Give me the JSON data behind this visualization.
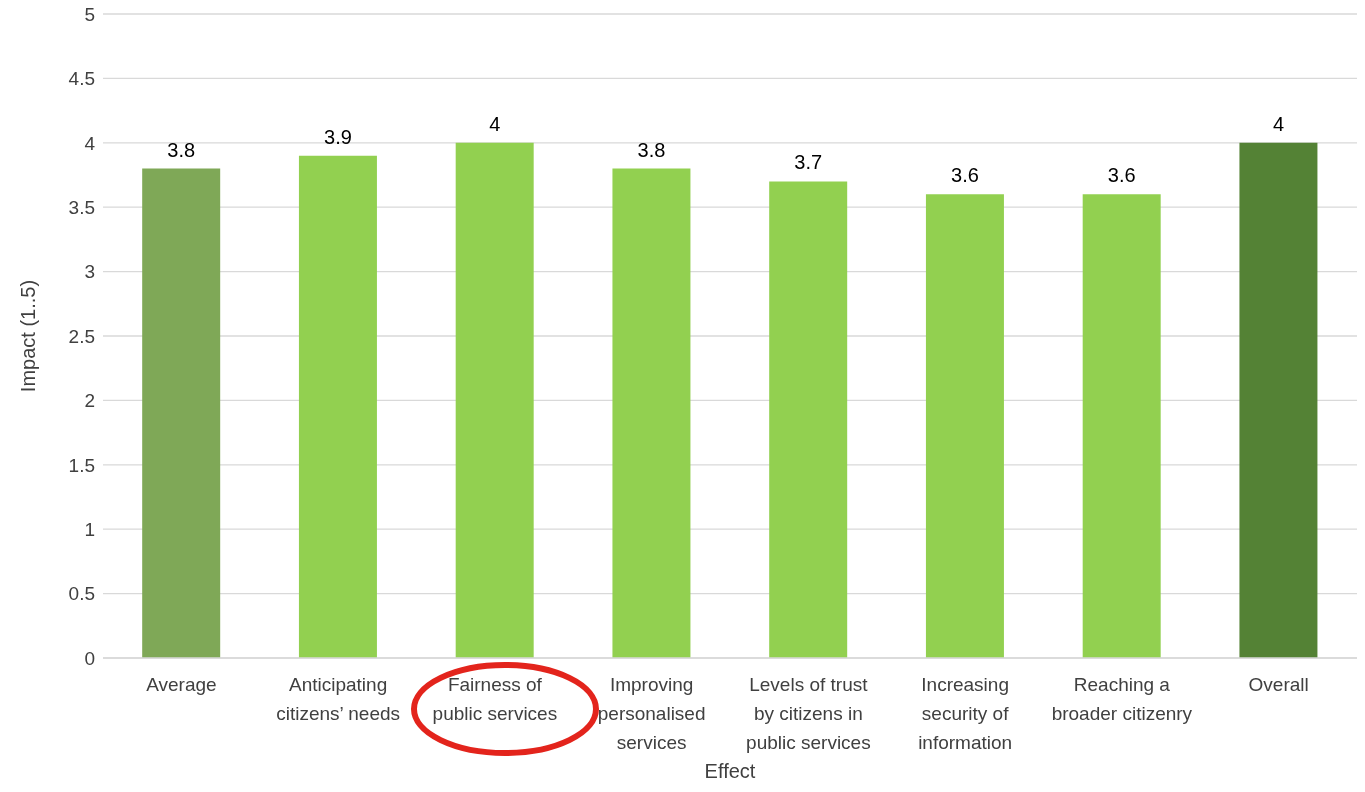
{
  "chart_data": {
    "type": "bar",
    "xlabel": "Effect",
    "ylabel": "Impact (1..5)",
    "categories": [
      "Average",
      "Anticipating citizens’ needs",
      "Fairness of public services",
      "Improving personalised services",
      "Levels of trust by citizens in public services",
      "Increasing security of information",
      "Reaching a broader citizenry",
      "Overall"
    ],
    "values": [
      3.8,
      3.9,
      4,
      3.8,
      3.7,
      3.6,
      3.6,
      4
    ],
    "colors": [
      "#7fa857",
      "#92d050",
      "#92d050",
      "#92d050",
      "#92d050",
      "#92d050",
      "#92d050",
      "#548235"
    ],
    "ylim": [
      0,
      5
    ],
    "yticks": [
      0,
      0.5,
      1,
      1.5,
      2,
      2.5,
      3,
      3.5,
      4,
      4.5,
      5
    ],
    "grid": "y",
    "data_labels": true
  }
}
